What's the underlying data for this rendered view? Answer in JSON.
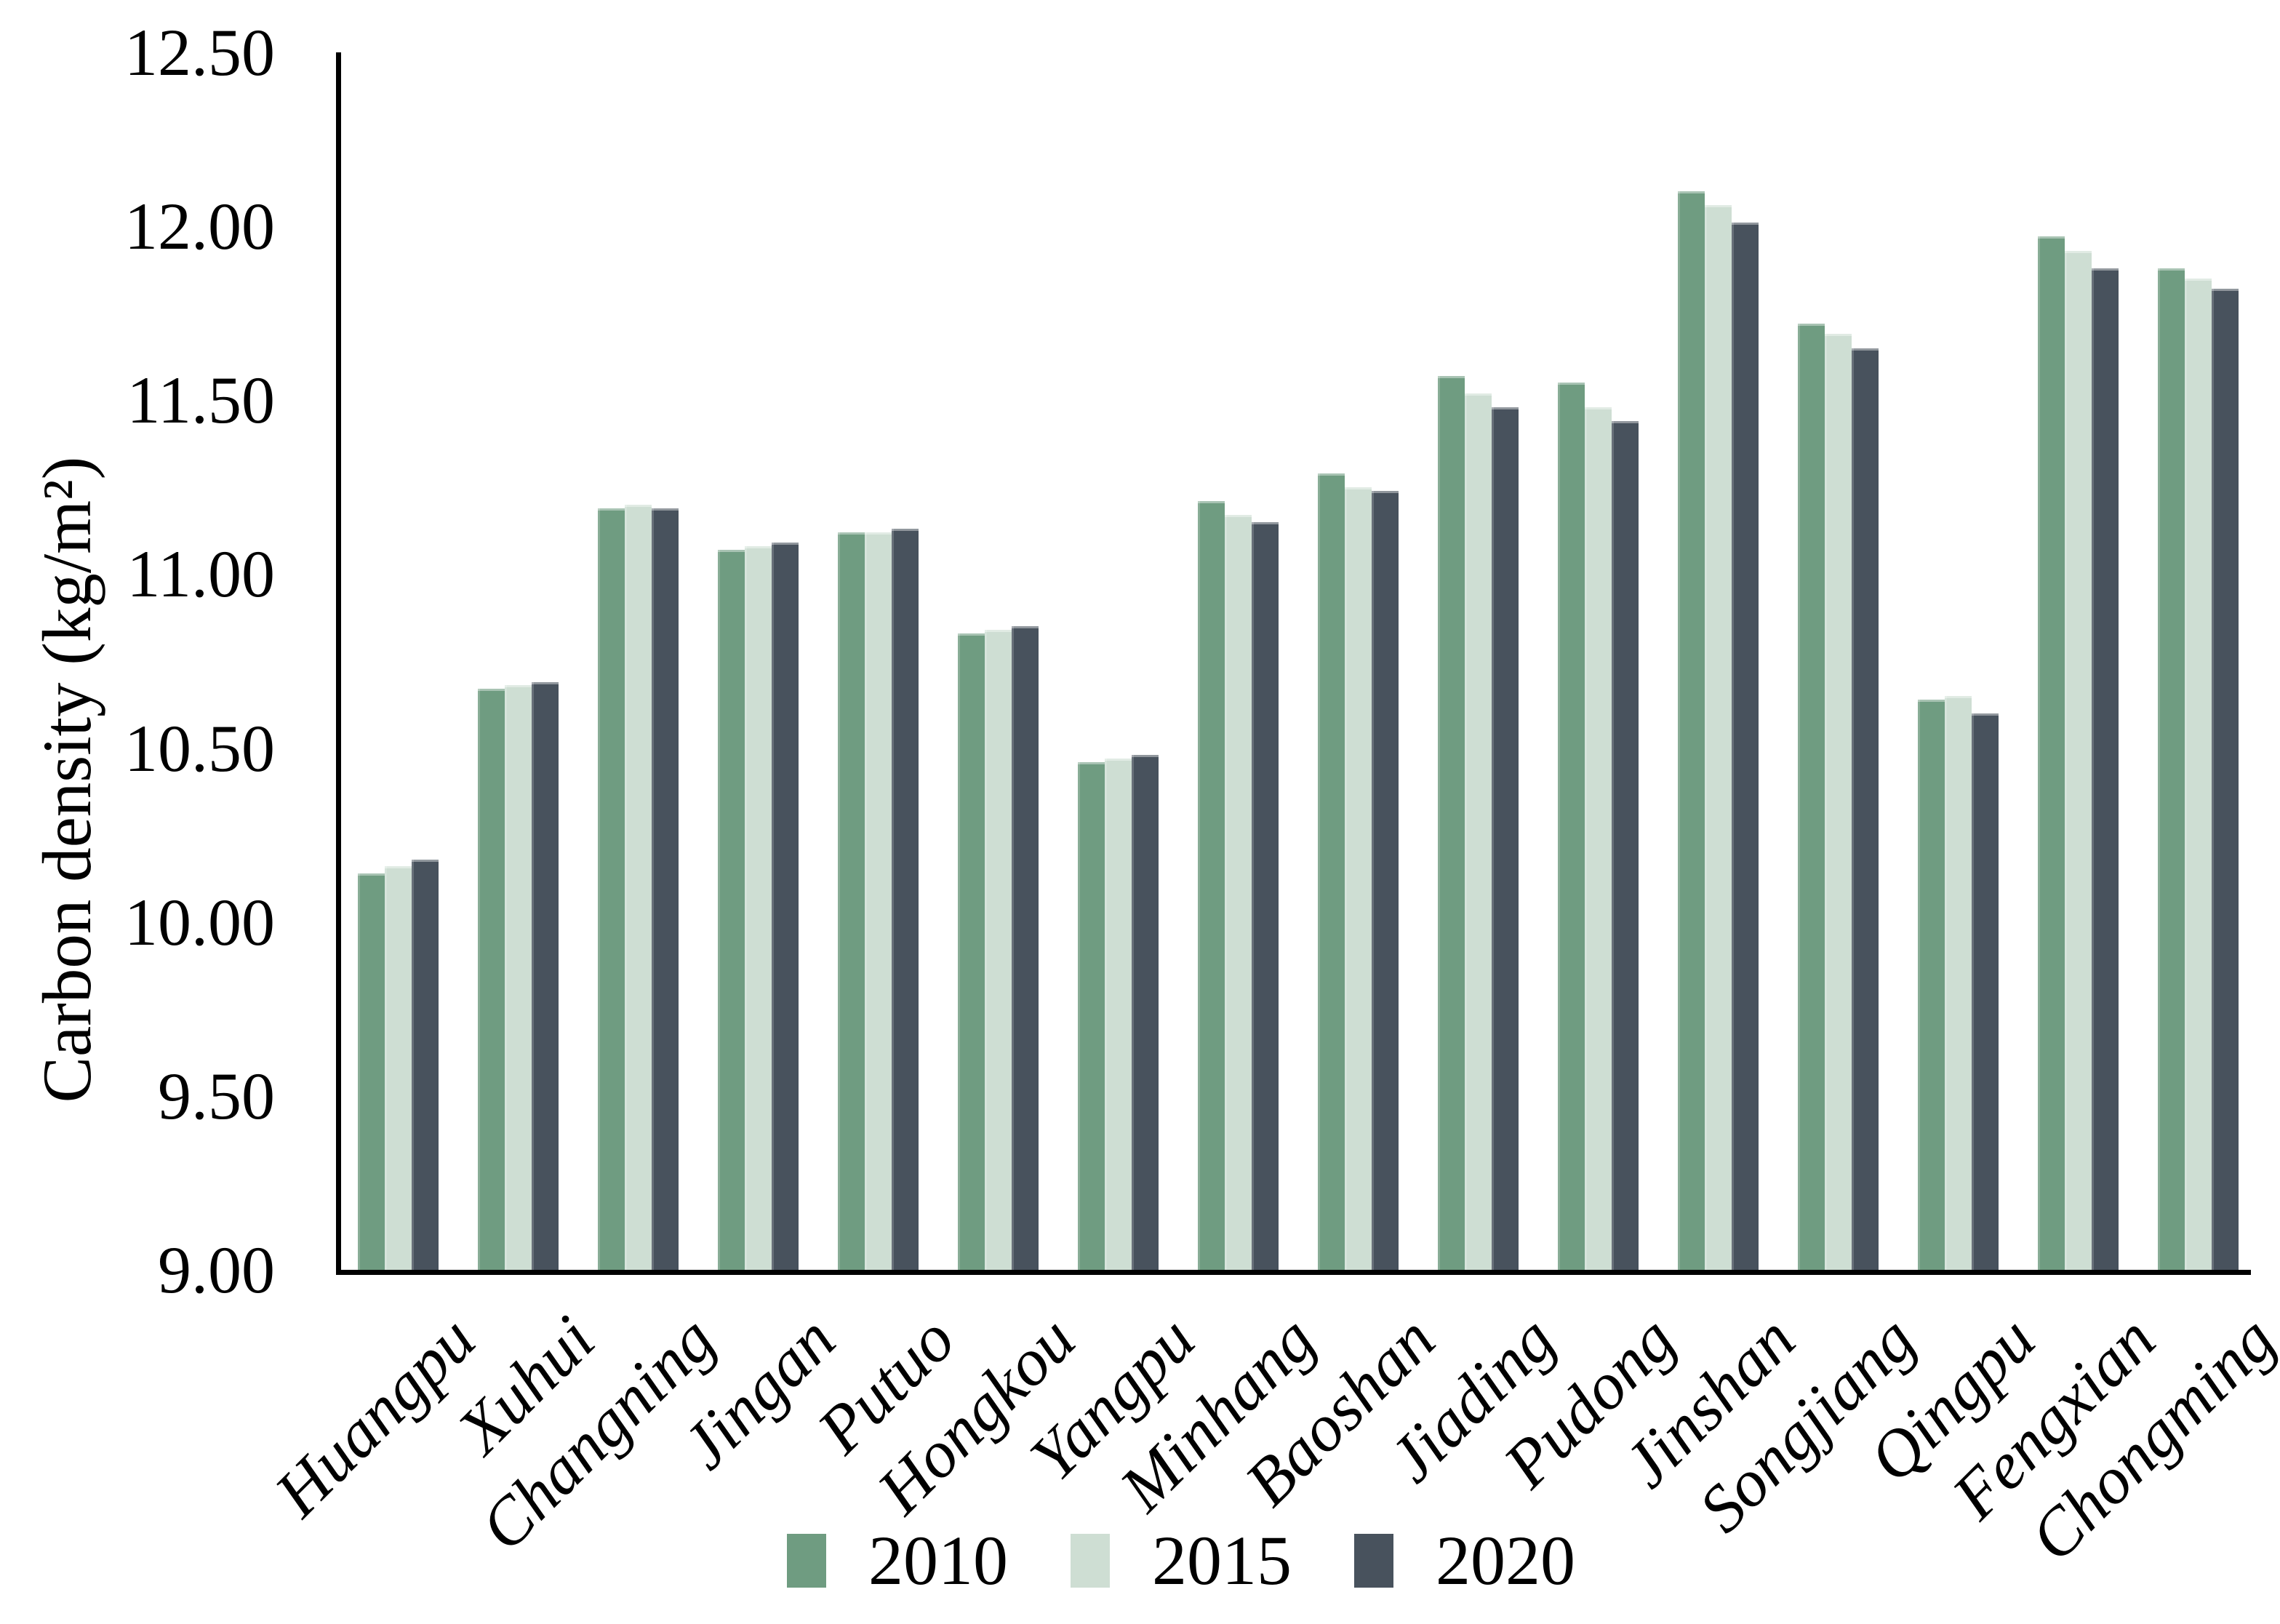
{
  "figure": {
    "background": "#ffffff",
    "text_color": "#000000"
  },
  "chart_data": {
    "type": "bar",
    "title": "",
    "xlabel": "",
    "ylabel": "Carbon density (kg/m²)",
    "ylim": [
      9.0,
      12.5
    ],
    "ytick_step": 0.5,
    "ytick_labels": [
      "12.50",
      "12.00",
      "11.50",
      "11.00",
      "10.50",
      "10.00",
      "9.50",
      "9.00"
    ],
    "grid": false,
    "legend_position": "bottom",
    "categories": [
      "Huangpu",
      "Xuhui",
      "Changning",
      "Jingan",
      "Putuo",
      "Hongkou",
      "Yangpu",
      "Minhang",
      "Baoshan",
      "Jiading",
      "Pudong",
      "Jinshan",
      "Songjiang",
      "Qingpu",
      "Fengxian",
      "Chongming"
    ],
    "series": [
      {
        "name": "2010",
        "color": "#6F9C81",
        "values": [
          10.14,
          10.67,
          11.19,
          11.07,
          11.12,
          10.83,
          10.46,
          11.21,
          11.29,
          11.57,
          11.55,
          12.1,
          11.72,
          10.64,
          11.97,
          11.88
        ]
      },
      {
        "name": "2015",
        "color": "#CEDED3",
        "values": [
          10.16,
          10.68,
          11.2,
          11.08,
          11.12,
          10.84,
          10.47,
          11.17,
          11.25,
          11.52,
          11.48,
          12.06,
          11.69,
          10.65,
          11.93,
          11.85
        ]
      },
      {
        "name": "2020",
        "color": "#48525D",
        "values": [
          10.18,
          10.69,
          11.19,
          11.09,
          11.13,
          10.85,
          10.48,
          11.15,
          11.24,
          11.48,
          11.44,
          12.01,
          11.65,
          10.6,
          11.88,
          11.82
        ]
      }
    ]
  }
}
